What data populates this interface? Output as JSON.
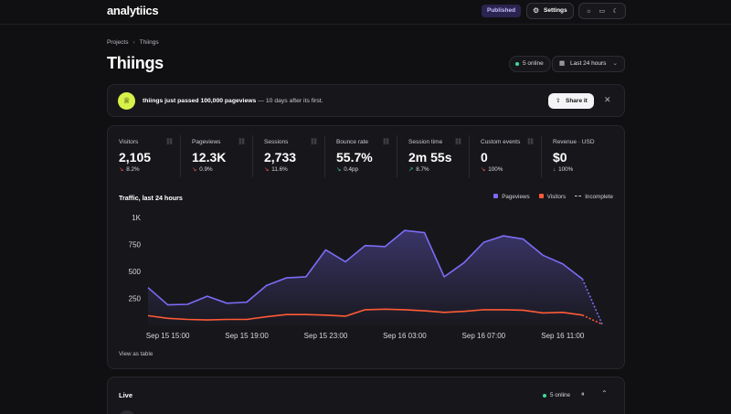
{
  "header": {
    "logo": "analytiics",
    "published_label": "Published",
    "settings_label": "Settings",
    "settings_icon": "gear-icon",
    "theme_icons": [
      "sun-icon",
      "monitor-icon",
      "moon-icon"
    ]
  },
  "breadcrumb": {
    "root": "Projects",
    "current": "Thiings"
  },
  "page": {
    "title": "Thiings",
    "online_label": "5 online",
    "range_label": "Last 24 hours"
  },
  "banner": {
    "highlight": "thiings just passed 100,000 pageviews",
    "rest": " — 10 days after its first.",
    "share_label": "Share it",
    "close_glyph": "✕"
  },
  "metrics": [
    {
      "label": "Visitors",
      "value": "2,105",
      "change": "8.2%",
      "dir": "down-red",
      "arrow": "↘"
    },
    {
      "label": "Pageviews",
      "value": "12.3K",
      "change": "0.9%",
      "dir": "down-red",
      "arrow": "↘"
    },
    {
      "label": "Sessions",
      "value": "2,733",
      "change": "11.6%",
      "dir": "down-red",
      "arrow": "↘"
    },
    {
      "label": "Bounce rate",
      "value": "55.7%",
      "change": "0.4pp",
      "dir": "down-green",
      "arrow": "↘"
    },
    {
      "label": "Session time",
      "value": "2m 55s",
      "change": "8.7%",
      "dir": "up-green",
      "arrow": "↗"
    },
    {
      "label": "Custom events",
      "value": "0",
      "change": "100%",
      "dir": "down-red",
      "arrow": "↘"
    },
    {
      "label": "Revenue · USD",
      "value": "$0",
      "change": "100%",
      "dir": "down-gray",
      "arrow": "↓"
    }
  ],
  "chart": {
    "title": "Traffic, last 24 hours",
    "legend": {
      "pageviews": "Pageviews",
      "visitors": "Visitors",
      "incomplete": "Incomplete"
    },
    "colors": {
      "pageviews": "#7b6cf6",
      "visitors": "#ff5a36"
    },
    "view_table_label": "View as table"
  },
  "chart_data": {
    "type": "line",
    "title": "Traffic, last 24 hours",
    "ylim": [
      0,
      1000
    ],
    "y_ticks": [
      250,
      500,
      750,
      1000
    ],
    "y_tick_labels": [
      "250",
      "500",
      "750",
      "1K"
    ],
    "x_tick_labels": [
      "Sep 15 15:00",
      "Sep 15 19:00",
      "Sep 15 23:00",
      "Sep 16 03:00",
      "Sep 16 07:00",
      "Sep 16 11:00"
    ],
    "x_tick_index": [
      1,
      5,
      9,
      13,
      17,
      21
    ],
    "series": [
      {
        "name": "Pageviews",
        "values": [
          350,
          190,
          195,
          270,
          205,
          215,
          370,
          440,
          450,
          700,
          590,
          740,
          730,
          880,
          860,
          450,
          580,
          770,
          830,
          800,
          650,
          570,
          430,
          10
        ]
      },
      {
        "name": "Visitors",
        "values": [
          90,
          65,
          55,
          50,
          55,
          55,
          80,
          100,
          100,
          95,
          85,
          145,
          150,
          145,
          135,
          120,
          130,
          145,
          145,
          140,
          115,
          120,
          95,
          10
        ]
      }
    ],
    "incomplete_from_index": 22
  },
  "live": {
    "title": "Live",
    "online_label": "5 online",
    "pause_glyph": "⏸",
    "collapse_glyph": "⌃"
  }
}
